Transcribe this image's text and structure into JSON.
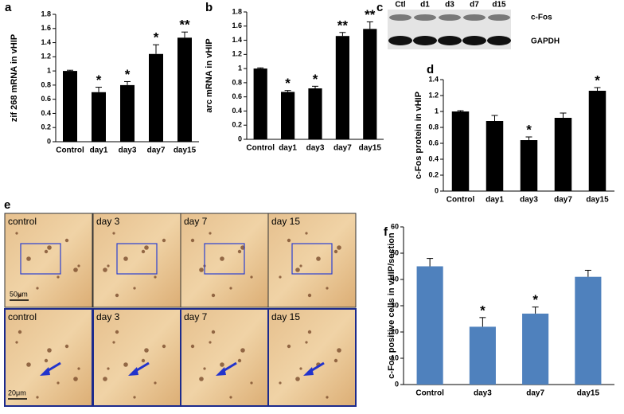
{
  "chart_data": [
    {
      "type": "bar",
      "panel": "a",
      "ylabel": "zif 268 mRNA in vHIP",
      "color": "#000000",
      "categories": [
        "Control",
        "day1",
        "day3",
        "day7",
        "day15"
      ],
      "values": [
        1.0,
        0.7,
        0.8,
        1.24,
        1.47
      ],
      "errors": [
        0.01,
        0.07,
        0.05,
        0.13,
        0.08
      ],
      "annotations": [
        null,
        "*",
        "*",
        "*",
        "**"
      ],
      "ylim": [
        0,
        1.8
      ],
      "yticks": [
        0,
        0.2,
        0.4,
        0.6,
        0.8,
        1,
        1.2,
        1.4,
        1.6,
        1.8
      ]
    },
    {
      "type": "bar",
      "panel": "b",
      "ylabel": "arc mRNA in vHIP",
      "color": "#000000",
      "categories": [
        "Control",
        "day1",
        "day3",
        "day7",
        "day15"
      ],
      "values": [
        1.0,
        0.67,
        0.72,
        1.46,
        1.56
      ],
      "errors": [
        0.01,
        0.02,
        0.03,
        0.05,
        0.1
      ],
      "annotations": [
        null,
        "*",
        "*",
        "**",
        "**"
      ],
      "ylim": [
        0,
        1.8
      ],
      "yticks": [
        0,
        0.2,
        0.4,
        0.6,
        0.8,
        1,
        1.2,
        1.4,
        1.6,
        1.8
      ]
    },
    {
      "type": "bar",
      "panel": "d",
      "ylabel": "c-Fos protein in vHIP",
      "color": "#000000",
      "categories": [
        "Control",
        "day1",
        "day3",
        "day7",
        "day15"
      ],
      "values": [
        1.0,
        0.88,
        0.64,
        0.92,
        1.26
      ],
      "errors": [
        0.01,
        0.07,
        0.04,
        0.06,
        0.04
      ],
      "annotations": [
        null,
        null,
        "*",
        null,
        "*"
      ],
      "ylim": [
        0,
        1.4
      ],
      "yticks": [
        0,
        0.2,
        0.4,
        0.6,
        0.8,
        1,
        1.2,
        1.4
      ]
    },
    {
      "type": "bar",
      "panel": "f",
      "ylabel": "c-Fos positive cells in vHIP/section",
      "color": "#4f81bd",
      "categories": [
        "Control",
        "day3",
        "day7",
        "day15"
      ],
      "values": [
        45,
        22,
        27,
        41
      ],
      "errors": [
        3,
        3.5,
        2.5,
        2.5
      ],
      "annotations": [
        null,
        "*",
        "*",
        null
      ],
      "ylim": [
        0,
        60
      ],
      "yticks": [
        0,
        10,
        20,
        30,
        40,
        50,
        60
      ]
    }
  ],
  "blot": {
    "panel": "c",
    "lanes": [
      "Ctl",
      "d1",
      "d3",
      "d7",
      "d15"
    ],
    "rows": [
      "c-Fos",
      "GAPDH"
    ]
  },
  "micrographs": {
    "panel": "e",
    "top": [
      "control",
      "day 3",
      "day 7",
      "day 15"
    ],
    "bottom": [
      "control",
      "day 3",
      "day 7",
      "day 15"
    ],
    "scales": [
      "50μm",
      "20μm"
    ]
  }
}
